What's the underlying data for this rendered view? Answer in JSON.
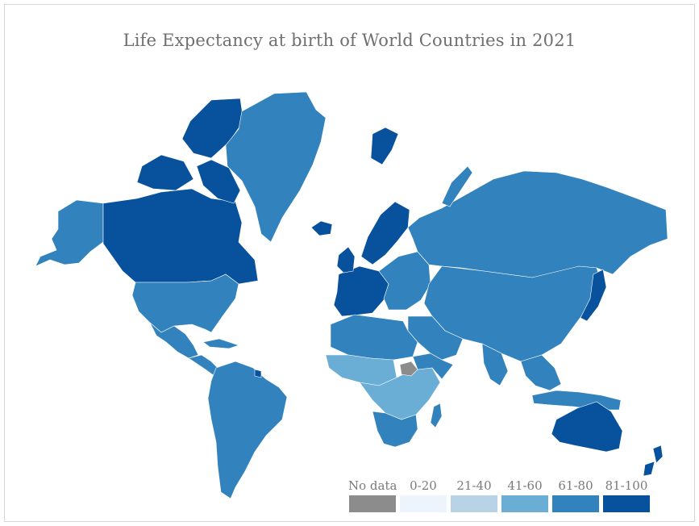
{
  "title": "Life Expectancy at birth of World Countries in 2021",
  "legend": [
    {
      "label": "No data",
      "color": "#8c8c8c"
    },
    {
      "label": "0-20",
      "color": "#eef4fc"
    },
    {
      "label": "21-40",
      "color": "#b9d3e6"
    },
    {
      "label": "41-60",
      "color": "#6aaed6"
    },
    {
      "label": "61-80",
      "color": "#3182bd"
    },
    {
      "label": "81-100",
      "color": "#08519c"
    }
  ],
  "colors": {
    "no_data": "#8c8c8c",
    "range_41_60": "#6aaed6",
    "range_61_80": "#3182bd",
    "range_81_100": "#08519c"
  }
}
